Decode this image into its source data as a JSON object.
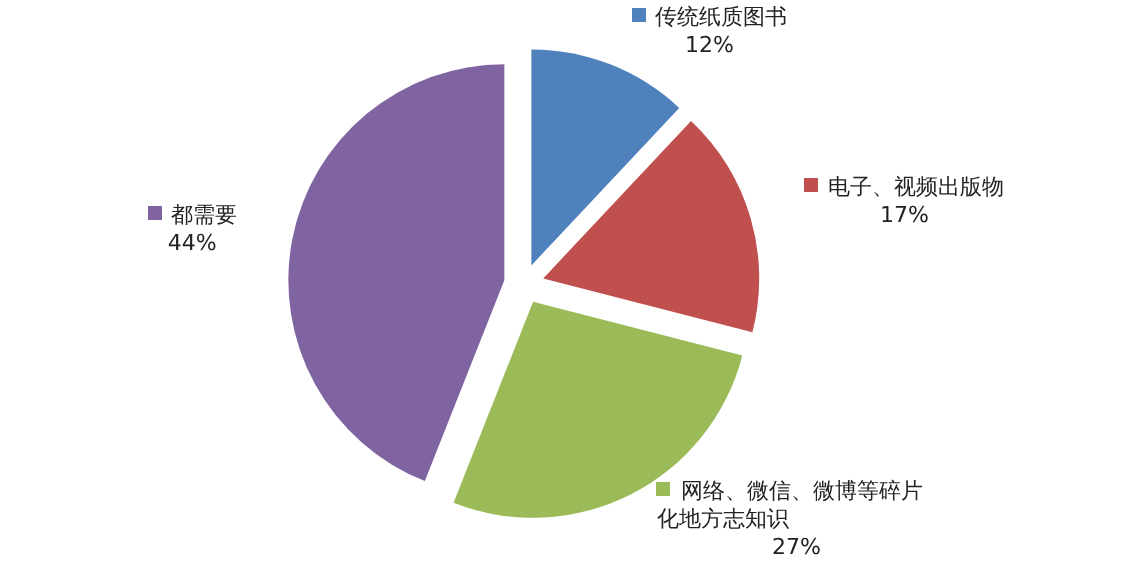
{
  "chart_data": {
    "type": "pie",
    "categories": [
      "传统纸质图书",
      "电子、视频出版物",
      "网络、微信、微博等碎片化地方志知识",
      "都需要"
    ],
    "values": [
      12,
      17,
      27,
      44
    ],
    "colors": [
      "#4f81bd",
      "#c0504d",
      "#9bbb59",
      "#8064a2"
    ],
    "value_labels": [
      "12%",
      "17%",
      "27%",
      "44%"
    ],
    "legend": "right"
  }
}
